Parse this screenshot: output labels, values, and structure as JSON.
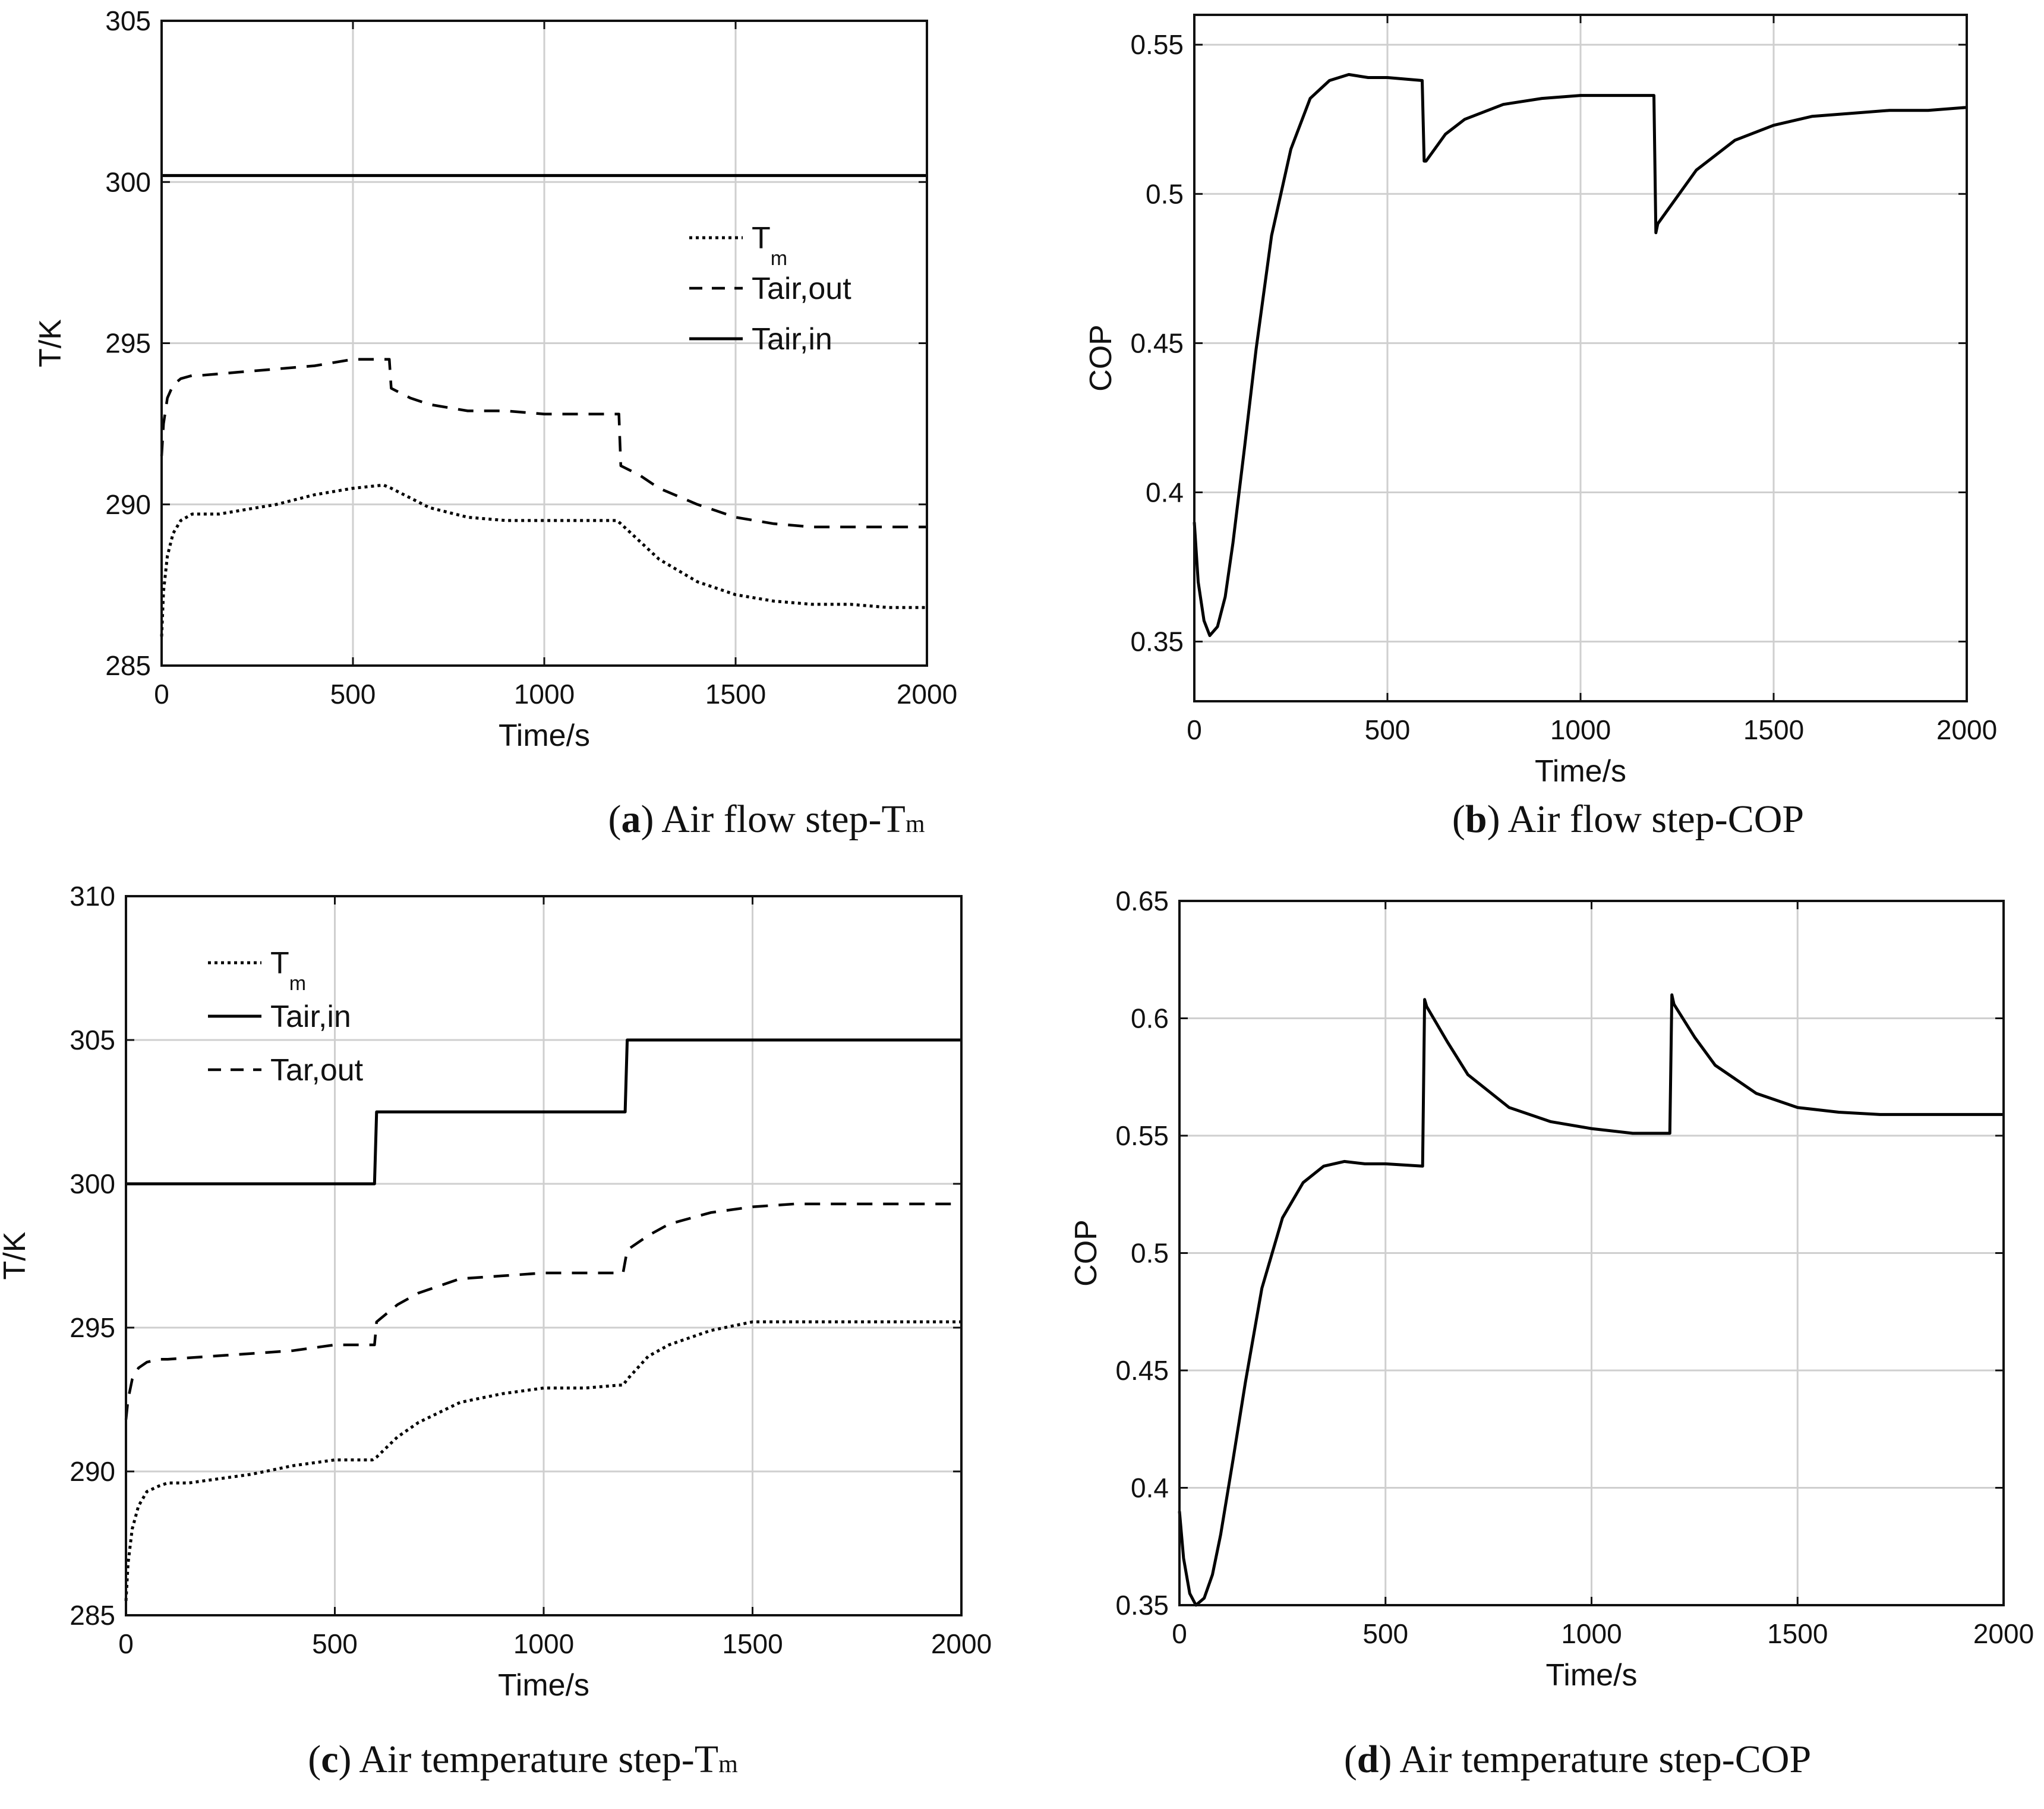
{
  "chart_data": [
    {
      "id": "a",
      "type": "line",
      "caption": {
        "letter": "a",
        "text": " Air flow step-T",
        "sub": "m"
      },
      "xlabel": "Time/s",
      "ylabel": "T/K",
      "xlim": [
        0,
        2000
      ],
      "ylim": [
        285,
        305
      ],
      "xticks": [
        0,
        500,
        1000,
        1500,
        2000
      ],
      "yticks": [
        285,
        290,
        295,
        300,
        305
      ],
      "grid": true,
      "legend_placement": "center-right",
      "series": [
        {
          "name": "T",
          "sub": "m",
          "style": "dotted",
          "x": [
            0,
            5,
            15,
            30,
            50,
            80,
            100,
            150,
            200,
            250,
            300,
            400,
            500,
            580,
            600,
            700,
            800,
            900,
            1000,
            1100,
            1190,
            1200,
            1300,
            1400,
            1500,
            1600,
            1700,
            1800,
            1900,
            2000
          ],
          "y": [
            285.9,
            287.3,
            288.4,
            289.1,
            289.5,
            289.7,
            289.7,
            289.7,
            289.8,
            289.9,
            290.0,
            290.3,
            290.5,
            290.6,
            290.5,
            289.9,
            289.6,
            289.5,
            289.5,
            289.5,
            289.5,
            289.4,
            288.3,
            287.6,
            287.2,
            287.0,
            286.9,
            286.9,
            286.8,
            286.8
          ]
        },
        {
          "name": "Tair,out",
          "style": "dashed",
          "x": [
            0,
            5,
            15,
            30,
            50,
            80,
            100,
            200,
            300,
            400,
            500,
            595,
            600,
            650,
            700,
            800,
            900,
            1000,
            1100,
            1195,
            1200,
            1250,
            1300,
            1400,
            1500,
            1600,
            1700,
            1800,
            1900,
            2000
          ],
          "y": [
            291.5,
            292.5,
            293.3,
            293.7,
            293.9,
            294.0,
            294.0,
            294.1,
            294.2,
            294.3,
            294.5,
            294.5,
            293.6,
            293.3,
            293.1,
            292.9,
            292.9,
            292.8,
            292.8,
            292.8,
            291.2,
            290.9,
            290.5,
            290.0,
            289.6,
            289.4,
            289.3,
            289.3,
            289.3,
            289.3
          ]
        },
        {
          "name": "Tair,in",
          "style": "solid",
          "x": [
            0,
            2000
          ],
          "y": [
            300.2,
            300.2
          ]
        }
      ]
    },
    {
      "id": "b",
      "type": "line",
      "caption": {
        "letter": "b",
        "text": " Air flow step-COP",
        "sub": ""
      },
      "xlabel": "Time/s",
      "ylabel": "COP",
      "xlim": [
        0,
        2000
      ],
      "ylim": [
        0.33,
        0.56
      ],
      "xticks": [
        0,
        500,
        1000,
        1500,
        2000
      ],
      "yticks": [
        0.35,
        0.4,
        0.45,
        0.5,
        0.55
      ],
      "grid": true,
      "series": [
        {
          "name": "COP",
          "style": "solid",
          "x": [
            0,
            10,
            25,
            40,
            60,
            80,
            100,
            130,
            160,
            200,
            250,
            300,
            350,
            400,
            450,
            500,
            590,
            595,
            600,
            650,
            700,
            800,
            900,
            1000,
            1100,
            1190,
            1195,
            1200,
            1300,
            1400,
            1500,
            1600,
            1700,
            1800,
            1900,
            2000
          ],
          "y": [
            0.39,
            0.37,
            0.357,
            0.352,
            0.355,
            0.365,
            0.383,
            0.415,
            0.448,
            0.486,
            0.515,
            0.532,
            0.538,
            0.54,
            0.539,
            0.539,
            0.538,
            0.511,
            0.511,
            0.52,
            0.525,
            0.53,
            0.532,
            0.533,
            0.533,
            0.533,
            0.487,
            0.49,
            0.508,
            0.518,
            0.523,
            0.526,
            0.527,
            0.528,
            0.528,
            0.529
          ]
        }
      ]
    },
    {
      "id": "c",
      "type": "line",
      "caption": {
        "letter": "c",
        "text": " Air temperature step-T",
        "sub": "m"
      },
      "xlabel": "Time/s",
      "ylabel": "T/K",
      "xlim": [
        0,
        2000
      ],
      "ylim": [
        285,
        310
      ],
      "xticks": [
        0,
        500,
        1000,
        1500,
        2000
      ],
      "yticks": [
        285,
        290,
        295,
        300,
        305,
        310
      ],
      "grid": true,
      "legend_placement": "top-left",
      "series": [
        {
          "name": "T",
          "sub": "m",
          "style": "dotted",
          "x": [
            0,
            5,
            15,
            30,
            50,
            80,
            100,
            150,
            200,
            300,
            400,
            500,
            590,
            600,
            650,
            700,
            800,
            900,
            1000,
            1100,
            1180,
            1190,
            1200,
            1250,
            1300,
            1400,
            1500,
            1600,
            1700,
            1800,
            1900,
            2000
          ],
          "y": [
            285.5,
            286.8,
            288.0,
            288.8,
            289.3,
            289.5,
            289.6,
            289.6,
            289.7,
            289.9,
            290.2,
            290.4,
            290.4,
            290.5,
            291.2,
            291.7,
            292.4,
            292.7,
            292.9,
            292.9,
            293.0,
            293.0,
            293.2,
            294.0,
            294.4,
            294.9,
            295.2,
            295.2,
            295.2,
            295.2,
            295.2,
            295.2
          ]
        },
        {
          "name": "Tair,in",
          "style": "solid",
          "x": [
            0,
            595,
            600,
            1195,
            1200,
            2000
          ],
          "y": [
            300.0,
            300.0,
            302.5,
            302.5,
            305.0,
            305.0
          ]
        },
        {
          "name": "Tar,out",
          "style": "dashed",
          "x": [
            0,
            5,
            15,
            30,
            50,
            80,
            100,
            200,
            300,
            400,
            500,
            595,
            600,
            650,
            700,
            800,
            900,
            1000,
            1100,
            1190,
            1200,
            1250,
            1300,
            1400,
            1500,
            1600,
            1700,
            1800,
            1900,
            2000
          ],
          "y": [
            291.8,
            292.5,
            293.2,
            293.6,
            293.8,
            293.9,
            293.9,
            294.0,
            294.1,
            294.2,
            294.4,
            294.4,
            295.2,
            295.8,
            296.2,
            296.7,
            296.8,
            296.9,
            296.9,
            296.9,
            297.7,
            298.2,
            298.6,
            299.0,
            299.2,
            299.3,
            299.3,
            299.3,
            299.3,
            299.3
          ]
        }
      ]
    },
    {
      "id": "d",
      "type": "line",
      "caption": {
        "letter": "d",
        "text": " Air temperature step-COP",
        "sub": ""
      },
      "xlabel": "Time/s",
      "ylabel": "COP",
      "xlim": [
        0,
        2000
      ],
      "ylim": [
        0.35,
        0.65
      ],
      "xticks": [
        0,
        500,
        1000,
        1500,
        2000
      ],
      "yticks": [
        0.35,
        0.4,
        0.45,
        0.5,
        0.55,
        0.6,
        0.65
      ],
      "grid": true,
      "series": [
        {
          "name": "COP",
          "style": "solid",
          "x": [
            0,
            10,
            25,
            40,
            60,
            80,
            100,
            130,
            160,
            200,
            250,
            300,
            350,
            400,
            450,
            500,
            590,
            595,
            600,
            650,
            700,
            800,
            900,
            1000,
            1100,
            1190,
            1195,
            1200,
            1250,
            1300,
            1400,
            1500,
            1600,
            1700,
            1800,
            1900,
            2000
          ],
          "y": [
            0.39,
            0.37,
            0.355,
            0.35,
            0.353,
            0.363,
            0.38,
            0.412,
            0.445,
            0.485,
            0.515,
            0.53,
            0.537,
            0.539,
            0.538,
            0.538,
            0.537,
            0.608,
            0.605,
            0.59,
            0.576,
            0.562,
            0.556,
            0.553,
            0.551,
            0.551,
            0.61,
            0.606,
            0.592,
            0.58,
            0.568,
            0.562,
            0.56,
            0.559,
            0.559,
            0.559,
            0.559
          ]
        }
      ]
    }
  ]
}
